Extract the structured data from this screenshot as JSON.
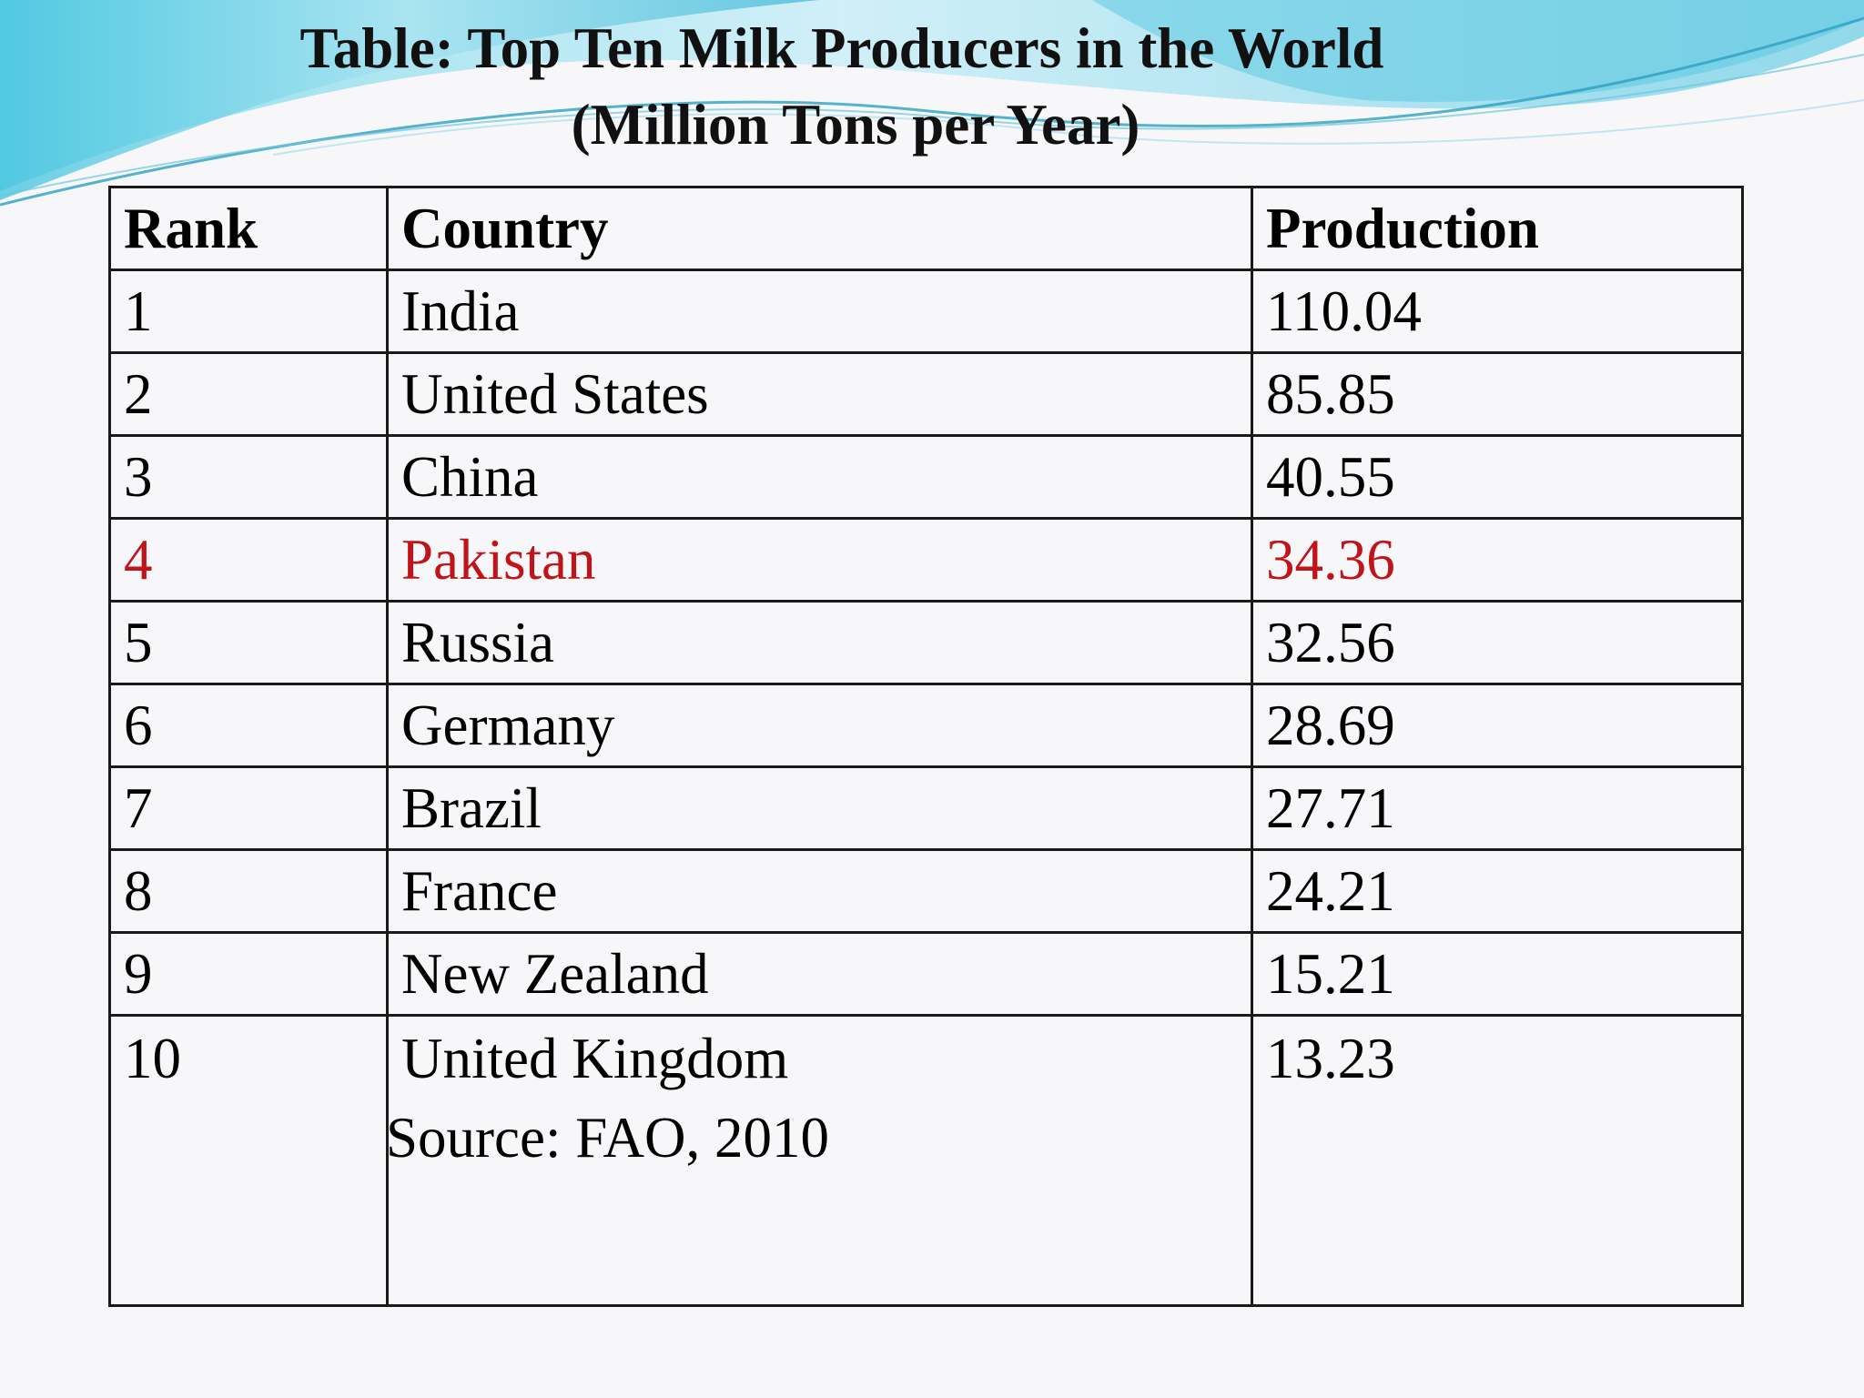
{
  "title_line1": "Table: Top Ten Milk Producers in the World",
  "title_line2": "(Million Tons per Year)",
  "headers": {
    "rank": "Rank",
    "country": "Country",
    "production": "Production"
  },
  "rows": [
    {
      "rank": "1",
      "country": "India",
      "production": "110.04"
    },
    {
      "rank": "2",
      "country": "United States",
      "production": "85.85"
    },
    {
      "rank": "3",
      "country": "China",
      "production": "40.55"
    },
    {
      "rank": "4",
      "country": "Pakistan",
      "production": "34.36"
    },
    {
      "rank": "5",
      "country": "Russia",
      "production": "32.56"
    },
    {
      "rank": "6",
      "country": "Germany",
      "production": "28.69"
    },
    {
      "rank": "7",
      "country": "Brazil",
      "production": "27.71"
    },
    {
      "rank": "8",
      "country": "France",
      "production": "24.21"
    },
    {
      "rank": "9",
      "country": "New Zealand",
      "production": "15.21"
    },
    {
      "rank": "10",
      "country": "United Kingdom",
      "production": "13.23"
    }
  ],
  "source": "Source: FAO, 2010",
  "colors": {
    "highlight": "#c0141b",
    "wave_light": "#bfeaf5",
    "wave_mid": "#6fd0e6",
    "wave_dark": "#2aa9c9"
  }
}
